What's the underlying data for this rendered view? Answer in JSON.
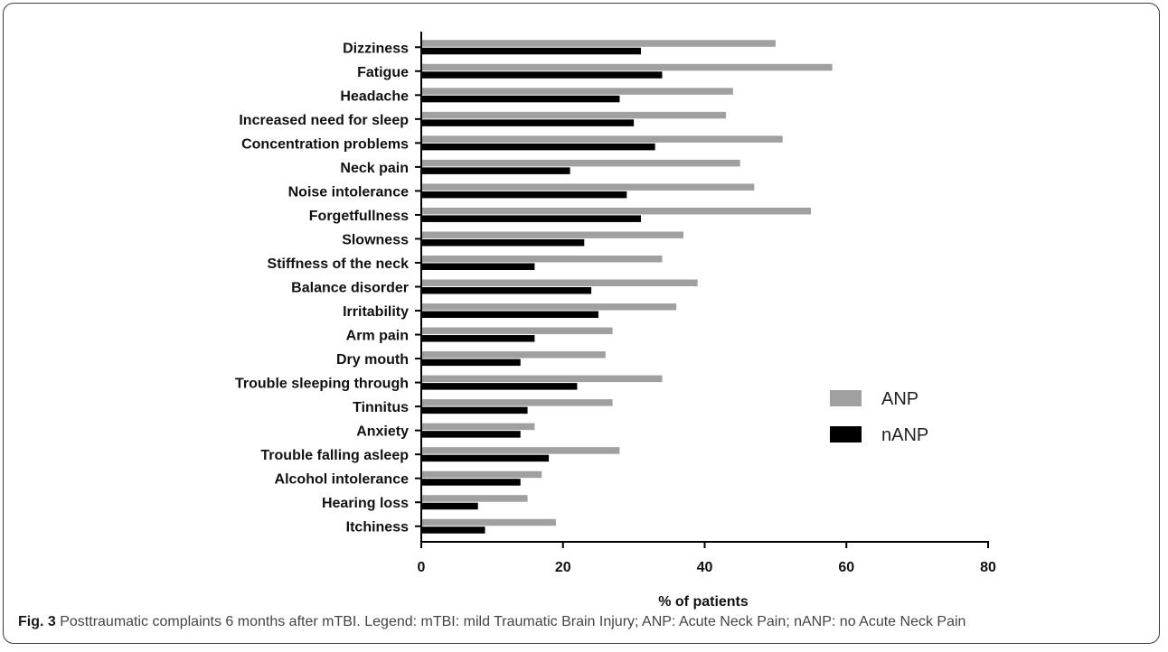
{
  "chart_data": {
    "type": "bar",
    "orientation": "horizontal",
    "categories": [
      "Dizziness",
      "Fatigue",
      "Headache",
      "Increased need for sleep",
      "Concentration problems",
      "Neck pain",
      "Noise intolerance",
      "Forgetfullness",
      "Slowness",
      "Stiffness of the neck",
      "Balance disorder",
      "Irritability",
      "Arm pain",
      "Dry mouth",
      "Trouble sleeping through",
      "Tinnitus",
      "Anxiety",
      "Trouble falling asleep",
      "Alcohol intolerance",
      "Hearing loss",
      "Itchiness"
    ],
    "series": [
      {
        "name": "ANP",
        "color": "#a0a0a0",
        "values": [
          50,
          58,
          44,
          43,
          51,
          45,
          47,
          55,
          37,
          34,
          39,
          36,
          27,
          26,
          34,
          27,
          16,
          28,
          17,
          15,
          19
        ]
      },
      {
        "name": "nANP",
        "color": "#000000",
        "values": [
          31,
          34,
          28,
          30,
          33,
          21,
          29,
          31,
          23,
          16,
          24,
          25,
          16,
          14,
          22,
          15,
          14,
          18,
          14,
          8,
          9
        ]
      }
    ],
    "xlabel": "% of patients",
    "xlim": [
      0,
      80
    ],
    "xticks": [
      "0",
      "20",
      "40",
      "60",
      "80"
    ],
    "grid": false,
    "legend_position": "right"
  },
  "caption": {
    "label": "Fig. 3",
    "text": "Posttraumatic complaints 6 months after mTBI. Legend: mTBI: mild Traumatic Brain Injury; ANP: Acute Neck Pain; nANP: no Acute Neck Pain"
  }
}
